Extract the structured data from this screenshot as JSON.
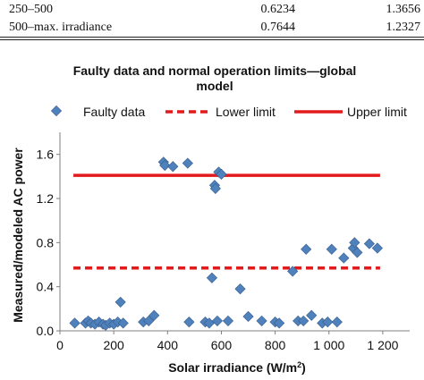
{
  "table_fragment": {
    "rows": [
      {
        "range": "250–500",
        "col2": "0.6234",
        "col3": "1.3656"
      },
      {
        "range": "500–max. irradiance",
        "col2": "0.7644",
        "col3": "1.2327"
      }
    ]
  },
  "colors": {
    "faulty": "#4F81BD",
    "faulty_edge": "#385D8A",
    "limits": "#E31A1C",
    "axis": "#7F7F7F"
  },
  "chart_data": {
    "type": "scatter",
    "title_line1": "Faulty data and normal operation limits—global",
    "title_line2": "model",
    "xlabel_text": "Solar irradiance (W/m",
    "xlabel_sup": "2",
    "xlabel_close": ")",
    "ylabel": "Measured/modeled AC power",
    "xlim": [
      0,
      1300
    ],
    "ylim": [
      0,
      1.8
    ],
    "x_ticks": [
      0,
      200,
      400,
      600,
      800,
      1000,
      1200
    ],
    "x_tick_labels": [
      "0",
      "200",
      "400",
      "600",
      "800",
      "1 000",
      "1 200"
    ],
    "y_ticks": [
      0.0,
      0.4,
      0.8,
      1.2,
      1.6
    ],
    "y_tick_labels": [
      "0.0",
      "0.4",
      "0.8",
      "1.2",
      "1.6"
    ],
    "grid": false,
    "legend_position": "top",
    "legend": {
      "faulty": "Faulty data",
      "lower": "Lower limit",
      "upper": "Upper limit"
    },
    "lower_limit": {
      "x": [
        50,
        1190
      ],
      "y": 0.57
    },
    "upper_limit": {
      "x": [
        50,
        1190
      ],
      "y": 1.41
    },
    "series": [
      {
        "name": "Faulty data",
        "x": [
          55,
          95,
          105,
          115,
          130,
          145,
          160,
          170,
          185,
          200,
          215,
          225,
          235,
          310,
          330,
          350,
          385,
          390,
          420,
          475,
          480,
          540,
          555,
          565,
          575,
          578,
          585,
          590,
          600,
          625,
          670,
          700,
          750,
          800,
          815,
          865,
          885,
          905,
          915,
          935,
          975,
          995,
          1010,
          1030,
          1055,
          1090,
          1095,
          1105,
          1150,
          1180
        ],
        "y": [
          0.07,
          0.07,
          0.09,
          0.07,
          0.06,
          0.08,
          0.06,
          0.05,
          0.07,
          0.06,
          0.08,
          0.26,
          0.07,
          0.08,
          0.09,
          0.14,
          1.53,
          1.5,
          1.49,
          1.52,
          0.08,
          0.08,
          0.07,
          0.48,
          1.32,
          1.29,
          0.09,
          1.44,
          1.42,
          0.09,
          0.38,
          0.13,
          0.09,
          0.08,
          0.07,
          0.54,
          0.09,
          0.09,
          0.74,
          0.14,
          0.07,
          0.08,
          0.74,
          0.08,
          0.66,
          0.75,
          0.8,
          0.71,
          0.79,
          0.75
        ]
      }
    ]
  }
}
